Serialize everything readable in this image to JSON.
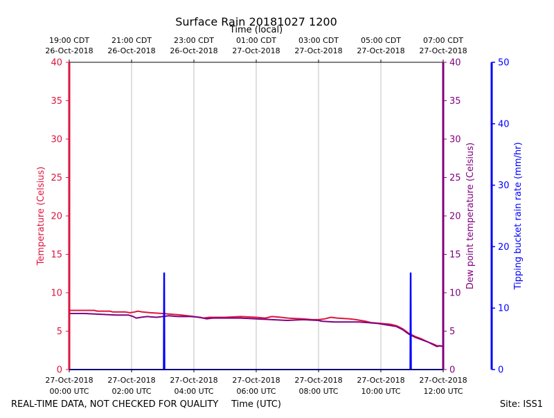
{
  "chart_data": {
    "type": "line",
    "title": "Surface Rain 20181027 1200",
    "top_axis_label": "Time (local)",
    "xlabel": "Time (UTC)",
    "footer_left": "REAL-TIME DATA, NOT CHECKED FOR QUALITY",
    "footer_right": "Site: ISS1",
    "x_range_hours": [
      0,
      12
    ],
    "bottom_ticks": [
      {
        "hour": 0,
        "line1": "27-Oct-2018",
        "line2": "00:00 UTC"
      },
      {
        "hour": 2,
        "line1": "27-Oct-2018",
        "line2": "02:00 UTC"
      },
      {
        "hour": 4,
        "line1": "27-Oct-2018",
        "line2": "04:00 UTC"
      },
      {
        "hour": 6,
        "line1": "27-Oct-2018",
        "line2": "06:00 UTC"
      },
      {
        "hour": 8,
        "line1": "27-Oct-2018",
        "line2": "08:00 UTC"
      },
      {
        "hour": 10,
        "line1": "27-Oct-2018",
        "line2": "10:00 UTC"
      },
      {
        "hour": 12,
        "line1": "27-Oct-2018",
        "line2": "12:00 UTC"
      }
    ],
    "top_ticks": [
      {
        "hour": 0,
        "line1": "19:00 CDT",
        "line2": "26-Oct-2018"
      },
      {
        "hour": 2,
        "line1": "21:00 CDT",
        "line2": "26-Oct-2018"
      },
      {
        "hour": 4,
        "line1": "23:00 CDT",
        "line2": "26-Oct-2018"
      },
      {
        "hour": 6,
        "line1": "01:00 CDT",
        "line2": "27-Oct-2018"
      },
      {
        "hour": 8,
        "line1": "03:00 CDT",
        "line2": "27-Oct-2018"
      },
      {
        "hour": 10,
        "line1": "05:00 CDT",
        "line2": "27-Oct-2018"
      },
      {
        "hour": 12,
        "line1": "07:00 CDT",
        "line2": "27-Oct-2018"
      }
    ],
    "axes": {
      "temperature": {
        "label": "Temperature (Celsius)",
        "ylim": [
          0,
          40
        ],
        "ticks": [
          0,
          5,
          10,
          15,
          20,
          25,
          30,
          35,
          40
        ],
        "color": "#dc143c"
      },
      "dewpoint": {
        "label": "Dew point temperature (Celsius)",
        "ylim": [
          0,
          40
        ],
        "ticks": [
          0,
          5,
          10,
          15,
          20,
          25,
          30,
          35,
          40
        ],
        "color": "#800080"
      },
      "rain": {
        "label": "Tipping bucket rain rate (mm/hr)",
        "ylim": [
          0,
          50
        ],
        "ticks": [
          0,
          10,
          20,
          30,
          40,
          50
        ],
        "color": "#0000ff"
      }
    },
    "series": [
      {
        "name": "Temperature",
        "axis": "temperature",
        "color": "#dc143c",
        "points": [
          [
            0,
            7.7
          ],
          [
            0.8,
            7.7
          ],
          [
            0.9,
            7.6
          ],
          [
            1.3,
            7.6
          ],
          [
            1.4,
            7.5
          ],
          [
            1.8,
            7.5
          ],
          [
            1.95,
            7.4
          ],
          [
            2.1,
            7.5
          ],
          [
            2.2,
            7.6
          ],
          [
            2.35,
            7.5
          ],
          [
            2.6,
            7.4
          ],
          [
            3.0,
            7.3
          ],
          [
            3.3,
            7.2
          ],
          [
            3.6,
            7.1
          ],
          [
            4.0,
            6.9
          ],
          [
            4.3,
            6.7
          ],
          [
            4.5,
            6.8
          ],
          [
            5.0,
            6.8
          ],
          [
            5.5,
            6.9
          ],
          [
            6.0,
            6.8
          ],
          [
            6.3,
            6.7
          ],
          [
            6.5,
            6.9
          ],
          [
            6.8,
            6.8
          ],
          [
            7.0,
            6.7
          ],
          [
            7.5,
            6.6
          ],
          [
            7.8,
            6.5
          ],
          [
            8.0,
            6.5
          ],
          [
            8.2,
            6.6
          ],
          [
            8.4,
            6.8
          ],
          [
            8.6,
            6.7
          ],
          [
            9.0,
            6.6
          ],
          [
            9.2,
            6.5
          ],
          [
            9.5,
            6.3
          ],
          [
            9.7,
            6.1
          ],
          [
            10.0,
            6.0
          ],
          [
            10.3,
            5.9
          ],
          [
            10.5,
            5.7
          ],
          [
            10.7,
            5.3
          ],
          [
            10.9,
            4.7
          ],
          [
            11.1,
            4.3
          ],
          [
            11.3,
            4.0
          ],
          [
            11.5,
            3.6
          ],
          [
            11.7,
            3.3
          ],
          [
            11.8,
            3.1
          ],
          [
            11.9,
            3.1
          ],
          [
            12.0,
            3.0
          ]
        ]
      },
      {
        "name": "Dew point",
        "axis": "dewpoint",
        "color": "#800080",
        "points": [
          [
            0,
            7.3
          ],
          [
            0.5,
            7.3
          ],
          [
            1.0,
            7.2
          ],
          [
            1.5,
            7.1
          ],
          [
            1.9,
            7.1
          ],
          [
            2.05,
            6.9
          ],
          [
            2.15,
            6.7
          ],
          [
            2.3,
            6.8
          ],
          [
            2.5,
            6.9
          ],
          [
            2.8,
            6.8
          ],
          [
            3.0,
            6.9
          ],
          [
            3.2,
            7.0
          ],
          [
            3.5,
            6.9
          ],
          [
            3.9,
            6.9
          ],
          [
            4.2,
            6.8
          ],
          [
            4.4,
            6.6
          ],
          [
            4.6,
            6.7
          ],
          [
            5.0,
            6.7
          ],
          [
            5.5,
            6.7
          ],
          [
            6.0,
            6.6
          ],
          [
            6.5,
            6.5
          ],
          [
            7.0,
            6.4
          ],
          [
            7.5,
            6.5
          ],
          [
            8.0,
            6.4
          ],
          [
            8.1,
            6.3
          ],
          [
            8.5,
            6.2
          ],
          [
            9.0,
            6.2
          ],
          [
            9.3,
            6.2
          ],
          [
            9.6,
            6.1
          ],
          [
            9.9,
            6.0
          ],
          [
            10.2,
            5.8
          ],
          [
            10.5,
            5.6
          ],
          [
            10.7,
            5.2
          ],
          [
            10.9,
            4.6
          ],
          [
            11.1,
            4.2
          ],
          [
            11.3,
            3.9
          ],
          [
            11.5,
            3.6
          ],
          [
            11.7,
            3.2
          ],
          [
            11.8,
            3.0
          ],
          [
            11.9,
            3.1
          ],
          [
            12.0,
            3.0
          ]
        ]
      },
      {
        "name": "Rain rate",
        "axis": "rain",
        "color": "#0000ff",
        "points": [
          [
            0,
            0
          ],
          [
            3.03,
            0
          ],
          [
            3.04,
            15.7
          ],
          [
            3.05,
            15.7
          ],
          [
            3.06,
            0
          ],
          [
            10.94,
            0
          ],
          [
            10.95,
            15.7
          ],
          [
            10.96,
            15.7
          ],
          [
            10.97,
            0
          ],
          [
            12.0,
            0
          ]
        ]
      }
    ]
  }
}
